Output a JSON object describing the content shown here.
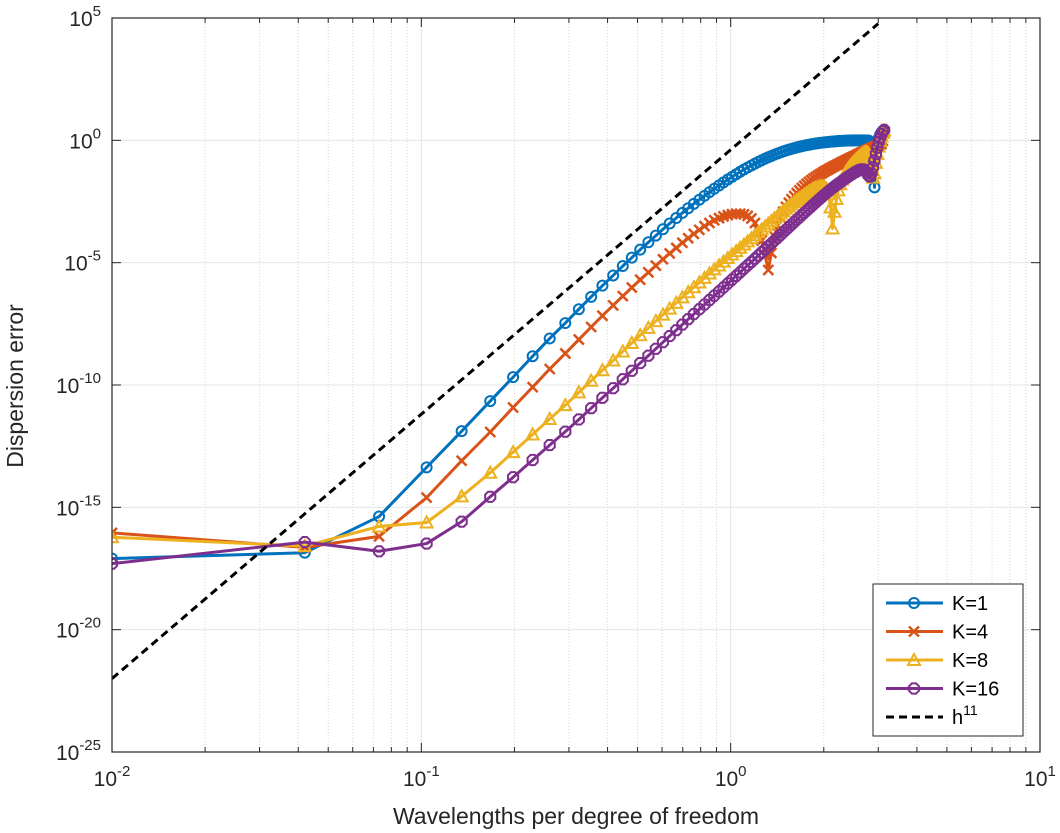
{
  "chart_data": {
    "type": "line",
    "xlabel": "Wavelengths per degree of freedom",
    "ylabel": "Dispersion error",
    "xscale": "log",
    "yscale": "log",
    "xlim": [
      0.01,
      10
    ],
    "ylim": [
      1e-25,
      100000
    ],
    "grid": true,
    "legend_position": "bottom-right",
    "x_ticks": [
      {
        "base": "10",
        "exp": "-2"
      },
      {
        "base": "10",
        "exp": "-1"
      },
      {
        "base": "10",
        "exp": "0"
      },
      {
        "base": "10",
        "exp": "1"
      }
    ],
    "y_ticks": [
      {
        "base": "10",
        "exp": "-25"
      },
      {
        "base": "10",
        "exp": "-20"
      },
      {
        "base": "10",
        "exp": "-15"
      },
      {
        "base": "10",
        "exp": "-10"
      },
      {
        "base": "10",
        "exp": "-5"
      },
      {
        "base": "10",
        "exp": "0"
      },
      {
        "base": "10",
        "exp": "5"
      }
    ],
    "series": [
      {
        "name": "K=1",
        "color": "#0072BD",
        "marker": "circle",
        "x": [
          0.01,
          0.042,
          0.073,
          0.104,
          0.135,
          0.167,
          0.198,
          0.229,
          0.26,
          0.292,
          0.323,
          0.354,
          0.385,
          0.417,
          0.448,
          0.479,
          0.51,
          0.542,
          0.573,
          0.604,
          0.635,
          0.667,
          0.698,
          0.729,
          0.76,
          0.792,
          0.823,
          0.854,
          0.885,
          0.917,
          0.948,
          0.979,
          1.01,
          1.042,
          1.073,
          1.104,
          1.135,
          1.167,
          1.198,
          1.229,
          1.26,
          1.292,
          1.323,
          1.354,
          1.385,
          1.417,
          1.448,
          1.479,
          1.51,
          1.542,
          1.573,
          1.604,
          1.635,
          1.667,
          1.698,
          1.729,
          1.76,
          1.792,
          1.823,
          1.854,
          1.885,
          1.917,
          1.948,
          1.979,
          2.01,
          2.042,
          2.073,
          2.104,
          2.135,
          2.167,
          2.198,
          2.229,
          2.26,
          2.292,
          2.323,
          2.354,
          2.385,
          2.417,
          2.448,
          2.479,
          2.51,
          2.542,
          2.573,
          2.604,
          2.635,
          2.667,
          2.698,
          2.729,
          2.76,
          2.792,
          2.823,
          2.854,
          2.885,
          2.917,
          2.948,
          2.979,
          3.01,
          3.042,
          3.073,
          3.104,
          3.135
        ],
        "y": [
          8e-18,
          1.4e-17,
          4.2e-16,
          4.3e-14,
          1.3e-12,
          2.2e-11,
          2.1e-10,
          1.5e-09,
          8e-09,
          3.4e-08,
          1.25e-07,
          4e-07,
          1.15e-06,
          3e-06,
          7.3e-06,
          1.6e-05,
          3.4e-05,
          6.8e-05,
          0.000128,
          0.000232,
          0.0004,
          0.00067,
          0.00108,
          0.00168,
          0.00254,
          0.00374,
          0.0054,
          0.0076,
          0.0105,
          0.0143,
          0.0191,
          0.025,
          0.032,
          0.041,
          0.052,
          0.064,
          0.078,
          0.094,
          0.112,
          0.132,
          0.154,
          0.178,
          0.203,
          0.23,
          0.259,
          0.289,
          0.32,
          0.352,
          0.384,
          0.416,
          0.449,
          0.481,
          0.513,
          0.545,
          0.576,
          0.606,
          0.635,
          0.663,
          0.69,
          0.716,
          0.741,
          0.765,
          0.787,
          0.808,
          0.828,
          0.847,
          0.864,
          0.88,
          0.895,
          0.909,
          0.922,
          0.934,
          0.945,
          0.955,
          0.963,
          0.971,
          0.978,
          0.984,
          0.989,
          0.992,
          0.994,
          0.996,
          0.997,
          0.997,
          0.997,
          0.996,
          0.995,
          0.993,
          0.99,
          0.985,
          0.85,
          0.6,
          0.12,
          0.012,
          0.25,
          0.7,
          1.2,
          1.7,
          2.1,
          2.4,
          2.6
        ]
      },
      {
        "name": "K=4",
        "color": "#D95319",
        "marker": "x",
        "x": [
          0.01,
          0.042,
          0.073,
          0.104,
          0.135,
          0.167,
          0.198,
          0.229,
          0.26,
          0.292,
          0.323,
          0.354,
          0.385,
          0.417,
          0.448,
          0.479,
          0.51,
          0.542,
          0.573,
          0.604,
          0.635,
          0.667,
          0.698,
          0.729,
          0.76,
          0.792,
          0.823,
          0.854,
          0.885,
          0.917,
          0.948,
          0.979,
          1.01,
          1.042,
          1.073,
          1.104,
          1.135,
          1.167,
          1.198,
          1.229,
          1.26,
          1.292,
          1.323,
          1.354,
          1.385,
          1.417,
          1.448,
          1.479,
          1.51,
          1.542,
          1.573,
          1.604,
          1.635,
          1.667,
          1.698,
          1.729,
          1.76,
          1.792,
          1.823,
          1.854,
          1.885,
          1.917,
          1.948,
          1.979,
          2.01,
          2.042,
          2.073,
          2.104,
          2.135,
          2.167,
          2.198,
          2.229,
          2.26,
          2.292,
          2.323,
          2.354,
          2.385,
          2.417,
          2.448,
          2.479,
          2.51,
          2.542,
          2.573,
          2.604,
          2.635,
          2.667,
          2.698,
          2.729,
          2.76,
          2.792,
          2.823,
          2.854,
          2.885,
          2.917,
          2.948,
          2.979,
          3.01,
          3.042,
          3.073,
          3.104,
          3.135
        ],
        "y": [
          9e-17,
          2.3e-17,
          6.5e-17,
          2.5e-15,
          8e-14,
          1.2e-12,
          1.2e-11,
          8.2e-11,
          4.5e-10,
          1.95e-09,
          7.2e-09,
          2.35e-08,
          6.8e-08,
          1.8e-07,
          4.3e-07,
          9.6e-07,
          2e-06,
          4e-06,
          7.6e-06,
          1.38e-05,
          2.4e-05,
          4e-05,
          6.5e-05,
          0.0001,
          0.00015,
          0.00022,
          0.00031,
          0.00042,
          0.00054,
          0.00066,
          0.00078,
          0.00088,
          0.00096,
          0.001,
          0.001,
          0.00094,
          0.00082,
          0.00064,
          0.00042,
          0.00022,
          8e-05,
          2e-05,
          5e-06,
          2.5e-05,
          0.00012,
          0.00034,
          0.0007,
          0.0012,
          0.0019,
          0.0028,
          0.0039,
          0.0053,
          0.007,
          0.009,
          0.0113,
          0.0139,
          0.0168,
          0.02,
          0.0236,
          0.0275,
          0.0318,
          0.0365,
          0.0416,
          0.047,
          0.053,
          0.059,
          0.066,
          0.073,
          0.081,
          0.089,
          0.098,
          0.107,
          0.117,
          0.128,
          0.139,
          0.151,
          0.164,
          0.178,
          0.193,
          0.209,
          0.226,
          0.244,
          0.263,
          0.283,
          0.304,
          0.326,
          0.349,
          0.373,
          0.398,
          0.424,
          0.451,
          0.48,
          0.51,
          0.54,
          0.572,
          0.605,
          0.639,
          0.674,
          0.71,
          0.95,
          2.0
        ]
      },
      {
        "name": "K=8",
        "color": "#EDB120",
        "marker": "triangle",
        "x": [
          0.01,
          0.042,
          0.073,
          0.104,
          0.135,
          0.167,
          0.198,
          0.229,
          0.26,
          0.292,
          0.323,
          0.354,
          0.385,
          0.417,
          0.448,
          0.479,
          0.51,
          0.542,
          0.573,
          0.604,
          0.635,
          0.667,
          0.698,
          0.729,
          0.76,
          0.792,
          0.823,
          0.854,
          0.885,
          0.917,
          0.948,
          0.979,
          1.01,
          1.042,
          1.073,
          1.104,
          1.135,
          1.167,
          1.198,
          1.229,
          1.26,
          1.292,
          1.323,
          1.354,
          1.385,
          1.417,
          1.448,
          1.479,
          1.51,
          1.542,
          1.573,
          1.604,
          1.635,
          1.667,
          1.698,
          1.729,
          1.76,
          1.792,
          1.823,
          1.854,
          1.885,
          1.917,
          1.948,
          1.979,
          2.01,
          2.042,
          2.073,
          2.104,
          2.135,
          2.167,
          2.198,
          2.229,
          2.26,
          2.292,
          2.323,
          2.354,
          2.385,
          2.417,
          2.448,
          2.479,
          2.51,
          2.542,
          2.573,
          2.604,
          2.635,
          2.667,
          2.698,
          2.729,
          2.76,
          2.792,
          2.823,
          2.854,
          2.885,
          2.917,
          2.948,
          2.979,
          3.01,
          3.042,
          3.073,
          3.104,
          3.135
        ],
        "y": [
          6e-17,
          2.6e-17,
          1.65e-16,
          2.4e-16,
          2.8e-15,
          2.6e-14,
          1.8e-13,
          9.5e-13,
          4.1e-12,
          1.5e-11,
          5e-11,
          1.5e-10,
          4e-10,
          1e-09,
          2.35e-09,
          5.2e-09,
          1.08e-08,
          2.15e-08,
          4.1e-08,
          7.5e-08,
          1.33e-07,
          2.28e-07,
          3.8e-07,
          6.2e-07,
          9.9e-07,
          1.55e-06,
          2.38e-06,
          3.6e-06,
          5.3e-06,
          7.7e-06,
          1.1e-05,
          1.55e-05,
          2.16e-05,
          2.97e-05,
          4.05e-05,
          5.5e-05,
          7.4e-05,
          9.9e-05,
          0.000132,
          0.000175,
          0.00023,
          0.0003,
          0.00039,
          0.0005,
          0.00064,
          0.00081,
          0.00102,
          0.00128,
          0.0016,
          0.00198,
          0.00243,
          0.00297,
          0.0036,
          0.0043,
          0.0051,
          0.006,
          0.007,
          0.0081,
          0.0092,
          0.0103,
          0.0113,
          0.0122,
          0.0128,
          0.013,
          0.0125,
          0.0105,
          0.0065,
          0.0018,
          0.00025,
          0.0012,
          0.004,
          0.009,
          0.016,
          0.025,
          0.036,
          0.049,
          0.063,
          0.079,
          0.097,
          0.117,
          0.139,
          0.163,
          0.189,
          0.217,
          0.248,
          0.28,
          0.31,
          0.33,
          0.325,
          0.28,
          0.19,
          0.09,
          0.03,
          0.045,
          0.12,
          0.28,
          0.55,
          0.95,
          1.45,
          2.0,
          2.5
        ]
      },
      {
        "name": "K=16",
        "color": "#7E2F8E",
        "marker": "octagon",
        "x": [
          0.01,
          0.042,
          0.073,
          0.104,
          0.135,
          0.167,
          0.198,
          0.229,
          0.26,
          0.292,
          0.323,
          0.354,
          0.385,
          0.417,
          0.448,
          0.479,
          0.51,
          0.542,
          0.573,
          0.604,
          0.635,
          0.667,
          0.698,
          0.729,
          0.76,
          0.792,
          0.823,
          0.854,
          0.885,
          0.917,
          0.948,
          0.979,
          1.01,
          1.042,
          1.073,
          1.104,
          1.135,
          1.167,
          1.198,
          1.229,
          1.26,
          1.292,
          1.323,
          1.354,
          1.385,
          1.417,
          1.448,
          1.479,
          1.51,
          1.542,
          1.573,
          1.604,
          1.635,
          1.667,
          1.698,
          1.729,
          1.76,
          1.792,
          1.823,
          1.854,
          1.885,
          1.917,
          1.948,
          1.979,
          2.01,
          2.042,
          2.073,
          2.104,
          2.135,
          2.167,
          2.198,
          2.229,
          2.26,
          2.292,
          2.323,
          2.354,
          2.385,
          2.417,
          2.448,
          2.479,
          2.51,
          2.542,
          2.573,
          2.604,
          2.635,
          2.667,
          2.698,
          2.729,
          2.76,
          2.792,
          2.823,
          2.854,
          2.885,
          2.917,
          2.948,
          2.979,
          3.01,
          3.042,
          3.073,
          3.104,
          3.135
        ],
        "y": [
          5e-18,
          3.8e-17,
          1.6e-17,
          3.3e-17,
          2.6e-16,
          2.7e-15,
          1.7e-14,
          8.6e-14,
          3.5e-13,
          1.24e-12,
          3.9e-12,
          1.13e-11,
          3e-11,
          7.4e-11,
          1.72e-10,
          3.8e-10,
          7.9e-10,
          1.58e-09,
          3.02e-09,
          5.6e-09,
          1e-08,
          1.74e-08,
          2.95e-08,
          4.9e-08,
          7.9e-08,
          1.25e-07,
          1.94e-07,
          2.96e-07,
          4.45e-07,
          6.6e-07,
          9.7e-07,
          1.41e-06,
          2.03e-06,
          2.88e-06,
          4.05e-06,
          5.65e-06,
          7.8e-06,
          1.07e-05,
          1.45e-05,
          1.96e-05,
          2.63e-05,
          3.5e-05,
          4.64e-05,
          6.1e-05,
          8e-05,
          0.000104,
          0.000135,
          0.000174,
          0.000223,
          0.000284,
          0.00036,
          0.000454,
          0.00057,
          0.00071,
          0.00088,
          0.00109,
          0.00134,
          0.00164,
          0.002,
          0.00243,
          0.00294,
          0.00354,
          0.00424,
          0.00506,
          0.006,
          0.0071,
          0.0083,
          0.0097,
          0.0113,
          0.013,
          0.015,
          0.017,
          0.019,
          0.022,
          0.025,
          0.028,
          0.031,
          0.035,
          0.039,
          0.043,
          0.048,
          0.052,
          0.057,
          0.061,
          0.064,
          0.065,
          0.062,
          0.055,
          0.045,
          0.036,
          0.033,
          0.045,
          0.08,
          0.15,
          0.28,
          0.5,
          0.85,
          1.3,
          1.8,
          2.3,
          2.7
        ]
      },
      {
        "name": "h^11",
        "label_base": "h",
        "label_exp": "11",
        "color": "#000000",
        "style": "dashed",
        "x": [
          0.01,
          3.0
        ],
        "y": [
          1e-22,
          59000.0
        ]
      }
    ]
  }
}
